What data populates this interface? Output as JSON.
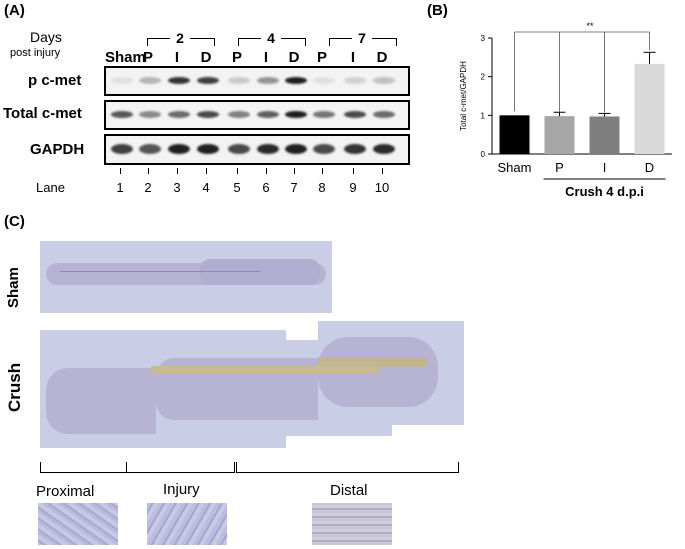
{
  "panelA": {
    "label": "(A)",
    "days_label": "Days",
    "post_injury_label": "post injury",
    "sham_label": "Sham",
    "day_groups": [
      "2",
      "4",
      "7"
    ],
    "region_letters": [
      "P",
      "I",
      "D",
      "P",
      "I",
      "D",
      "P",
      "I",
      "D"
    ],
    "rows": [
      "p c-met",
      "Total c-met",
      "GAPDH"
    ],
    "lane_label": "Lane",
    "lanes": [
      "1",
      "2",
      "3",
      "4",
      "5",
      "6",
      "7",
      "8",
      "9",
      "10"
    ]
  },
  "panelB": {
    "label": "(B)",
    "significance": "**",
    "group_label": "Crush 4 d.p.i"
  },
  "panelC": {
    "label": "(C)",
    "row_labels": [
      "Sham",
      "Crush"
    ],
    "regions": [
      "Proximal",
      "Injury",
      "Distal"
    ]
  },
  "chart_data": {
    "type": "bar",
    "categories": [
      "Sham",
      "P",
      "I",
      "D"
    ],
    "values": [
      1.0,
      0.98,
      0.97,
      2.33
    ],
    "errors": [
      0,
      0.1,
      0.08,
      0.3
    ],
    "colors": [
      "#000000",
      "#a6a6a6",
      "#7f7f7f",
      "#d9d9d9"
    ],
    "ylabel": "Total c-met/GAPDH",
    "xlabel": "",
    "ylim": [
      0,
      3
    ],
    "yticks": [
      "0",
      "1",
      "2",
      "3"
    ],
    "significance": {
      "between": [
        "Sham",
        "D"
      ],
      "label": "**"
    },
    "grid": false
  }
}
